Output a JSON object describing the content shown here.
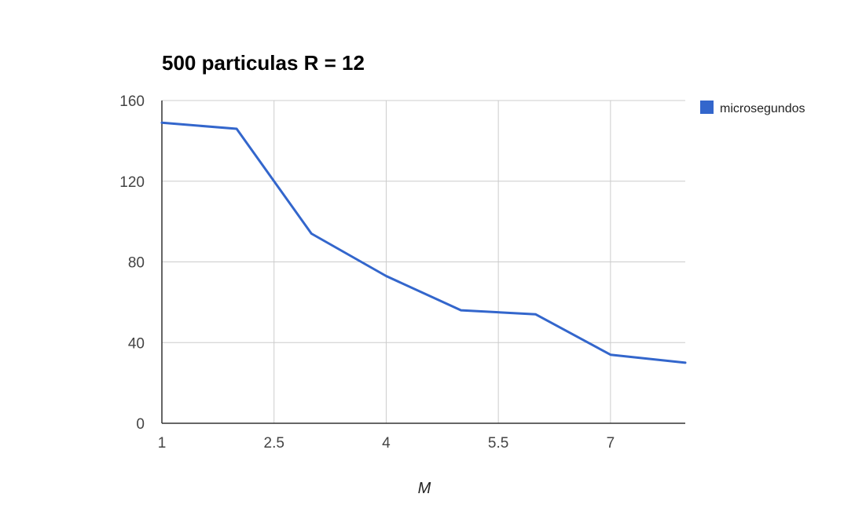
{
  "chart_data": {
    "type": "line",
    "title": "500 particulas R = 12",
    "xlabel": "M",
    "ylabel": "",
    "x": [
      1,
      2,
      3,
      4,
      5,
      6,
      7,
      8
    ],
    "series": [
      {
        "name": "microsegundos",
        "color": "#3366cc",
        "values": [
          149,
          146,
          94,
          73,
          56,
          54,
          34,
          30
        ]
      }
    ],
    "xlim": [
      1,
      8
    ],
    "ylim": [
      0,
      160
    ],
    "x_ticks": [
      "1",
      "2.5",
      "4",
      "5.5",
      "7"
    ],
    "x_tick_values": [
      1,
      2.5,
      4,
      5.5,
      7
    ],
    "y_ticks": [
      "0",
      "40",
      "80",
      "120",
      "160"
    ],
    "y_tick_values": [
      0,
      40,
      80,
      120,
      160
    ],
    "grid": true,
    "legend_position": "right"
  }
}
